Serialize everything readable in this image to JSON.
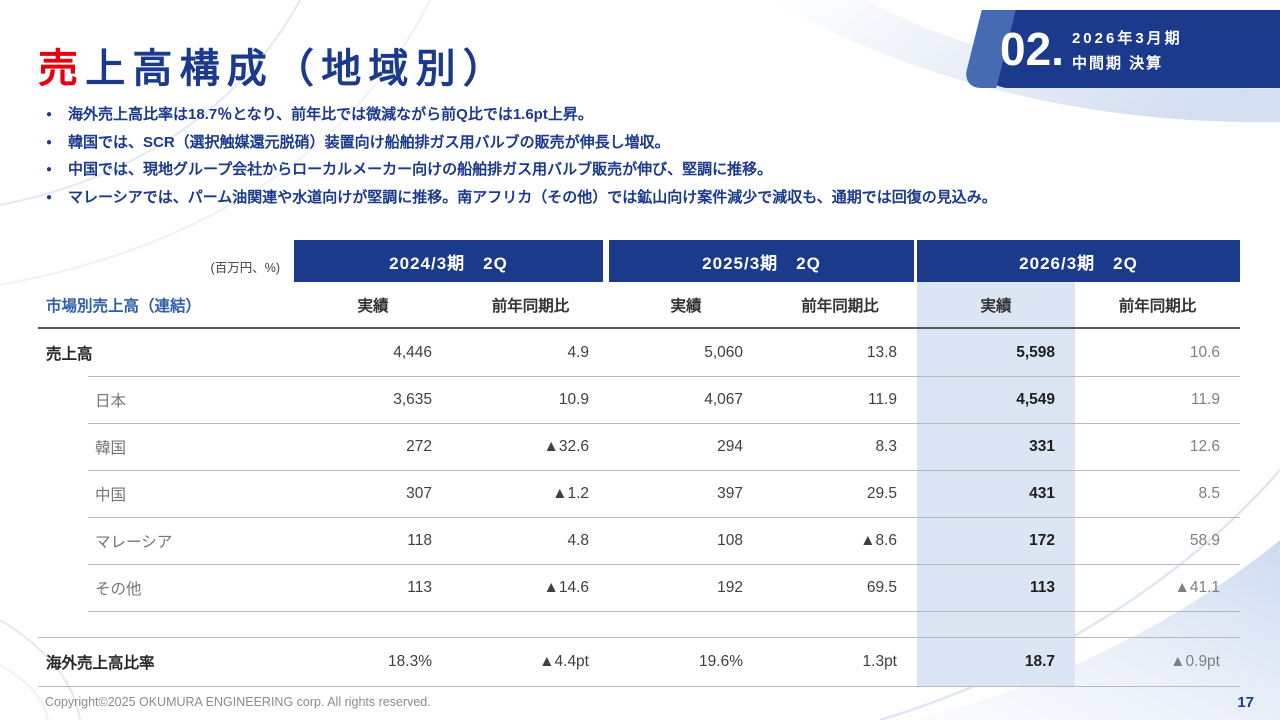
{
  "colors": {
    "navy": "#1b3a8c",
    "accent_red": "#e60012",
    "highlight_column": "#dce5f4"
  },
  "header": {
    "title_accent": "売",
    "title_rest": "上高構成（地域別）",
    "badge_number": "02.",
    "badge_line1": "2026年3月期",
    "badge_line2": "中間期 決算"
  },
  "bullets": [
    "海外売上高比率は18.7％となり、前年比では微減ながら前Q比では1.6pt上昇。",
    "韓国では、SCR（選択触媒還元脱硝）装置向け船舶排ガス用バルブの販売が伸長し増収。",
    "中国では、現地グループ会社からローカルメーカー向けの船舶排ガス用バルブ販売が伸び、堅調に推移。",
    "マレーシアでは、パーム油関連や水道向けが堅調に推移。南アフリカ（その他）では鉱山向け案件減少で減収も、通期では回復の見込み。"
  ],
  "table": {
    "unit_label": "(百万円、%)",
    "row_header": "市場別売上高（連結）",
    "periods": [
      "2024/3期　2Q",
      "2025/3期　2Q",
      "2026/3期　2Q"
    ],
    "sub_headers": [
      "実績",
      "前年同期比"
    ],
    "rows": [
      {
        "label": "売上高",
        "indent": false,
        "rule": "none",
        "values": [
          "4,446",
          "4.9",
          "5,060",
          "13.8",
          "5,598",
          "10.6"
        ]
      },
      {
        "label": "日本",
        "indent": true,
        "rule": "indent",
        "values": [
          "3,635",
          "10.9",
          "4,067",
          "11.9",
          "4,549",
          "11.9"
        ]
      },
      {
        "label": "韓国",
        "indent": true,
        "rule": "indent",
        "values": [
          "272",
          "▲32.6",
          "294",
          "8.3",
          "331",
          "12.6"
        ]
      },
      {
        "label": "中国",
        "indent": true,
        "rule": "indent",
        "values": [
          "307",
          "▲1.2",
          "397",
          "29.5",
          "431",
          "8.5"
        ]
      },
      {
        "label": "マレーシア",
        "indent": true,
        "rule": "indent",
        "values": [
          "118",
          "4.8",
          "108",
          "▲8.6",
          "172",
          "58.9"
        ]
      },
      {
        "label": "その他",
        "indent": true,
        "rule": "indent",
        "values": [
          "113",
          "▲14.6",
          "192",
          "69.5",
          "113",
          "▲41.1"
        ]
      },
      {
        "label": "",
        "spacer": true,
        "indent": true,
        "rule": "indent",
        "values": [
          "",
          "",
          "",
          "",
          "",
          ""
        ]
      },
      {
        "label": "海外売上高比率",
        "indent": false,
        "last": true,
        "rule": "full",
        "values": [
          "18.3%",
          "▲4.4pt",
          "19.6%",
          "1.3pt",
          "18.7",
          "▲0.9pt"
        ]
      }
    ]
  },
  "footer": {
    "copyright": "Copyright©2025 OKUMURA ENGINEERING corp. All rights reserved.",
    "page_number": "17"
  }
}
